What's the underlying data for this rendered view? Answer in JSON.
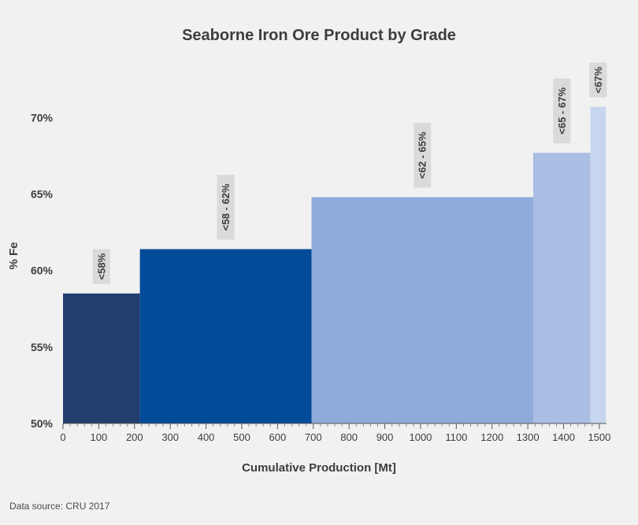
{
  "chart_data": {
    "type": "bar",
    "title": "Seaborne Iron Ore Product by Grade",
    "xlabel": "Cumulative Production [Mt]",
    "ylabel": "% Fe",
    "xlim": [
      0,
      1520
    ],
    "ylim": [
      50,
      71
    ],
    "x_ticks": [
      0,
      100,
      200,
      300,
      400,
      500,
      600,
      700,
      800,
      900,
      1000,
      1100,
      1200,
      1300,
      1400,
      1500
    ],
    "y_ticks": [
      50,
      55,
      60,
      65,
      70
    ],
    "y_tick_labels": [
      "50%",
      "55%",
      "60%",
      "65%",
      "70%"
    ],
    "grid": false,
    "bars": [
      {
        "label": "<58%",
        "x_start": 0,
        "x_end": 215,
        "value": 58.5,
        "color": "#213f6f"
      },
      {
        "label": "<58 - 62%",
        "x_start": 215,
        "x_end": 695,
        "value": 61.4,
        "color": "#034c99"
      },
      {
        "label": "<62 - 65%",
        "x_start": 695,
        "x_end": 1315,
        "value": 64.8,
        "color": "#8fabdc"
      },
      {
        "label": "<65 - 67%",
        "x_start": 1315,
        "x_end": 1475,
        "value": 67.7,
        "color": "#aabde3"
      },
      {
        "label": "<67%",
        "x_start": 1475,
        "x_end": 1518,
        "value": 70.7,
        "color": "#c7d5ef"
      }
    ]
  },
  "source": "Data source: CRU 2017"
}
